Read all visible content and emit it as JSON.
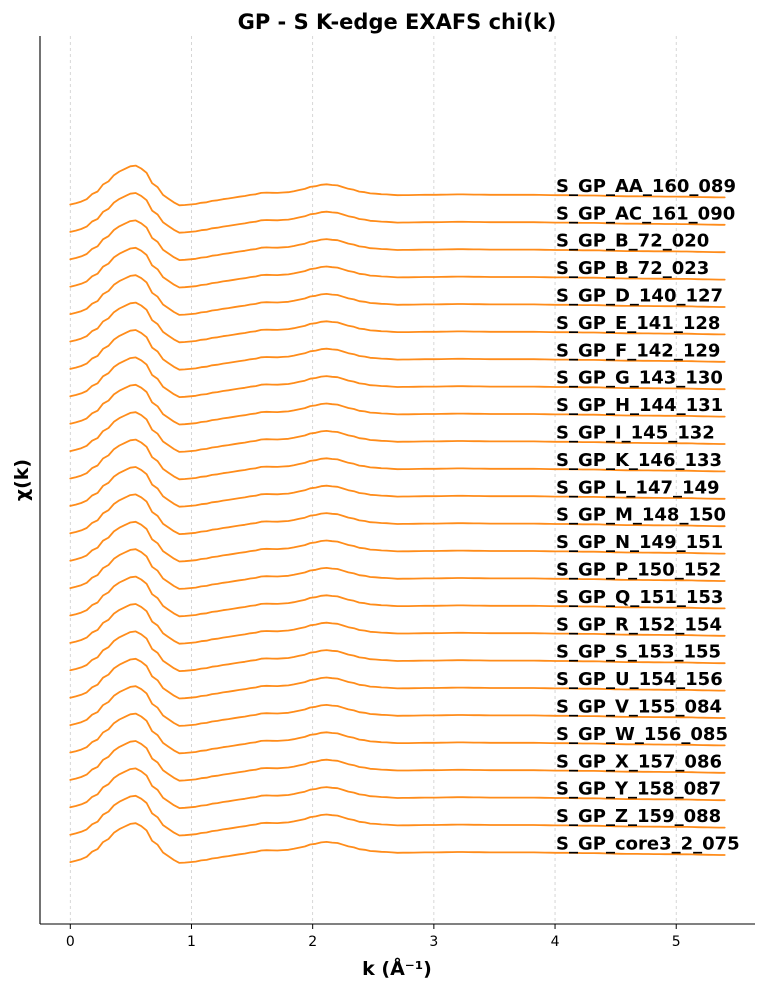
{
  "chart_data": {
    "type": "line",
    "title": "GP - S K-edge EXAFS chi(k)",
    "xlabel": "k (Å⁻¹)",
    "ylabel": "χ(k)",
    "xlim": [
      -0.25,
      5.65
    ],
    "x_ticks": [
      0,
      1,
      2,
      3,
      4,
      5
    ],
    "y_ticks_shown": false,
    "grid": "vertical dashed",
    "line_color": "#ff8c1a",
    "x_end": 5.4,
    "offset_step": 1,
    "profile": {
      "k": [
        0,
        0.1,
        0.2,
        0.3,
        0.4,
        0.5,
        0.55,
        0.6,
        0.7,
        0.8,
        0.9,
        1.0,
        1.1,
        1.2,
        1.3,
        1.4,
        1.5,
        1.6,
        1.7,
        1.8,
        1.9,
        2.0,
        2.1,
        2.2,
        2.3,
        2.4,
        2.5,
        2.6,
        2.7,
        3.0,
        3.2,
        3.5,
        3.8,
        4.0,
        4.3,
        4.6,
        5.0,
        5.4
      ],
      "chi": [
        -1.8,
        -1.4,
        -0.3,
        1.2,
        2.6,
        3.3,
        3.4,
        2.9,
        0.7,
        -1.0,
        -1.9,
        -1.8,
        -1.55,
        -1.25,
        -1.0,
        -0.75,
        -0.5,
        -0.2,
        -0.25,
        -0.15,
        0.15,
        0.6,
        0.9,
        0.75,
        0.3,
        -0.1,
        -0.35,
        -0.45,
        -0.55,
        -0.5,
        -0.45,
        -0.5,
        -0.5,
        -0.55,
        -0.6,
        -0.7,
        -0.75,
        -0.85
      ]
    },
    "series": [
      {
        "name": "S_GP_AA_160_089"
      },
      {
        "name": "S_GP_AC_161_090"
      },
      {
        "name": "S_GP_B_72_020"
      },
      {
        "name": "S_GP_B_72_023"
      },
      {
        "name": "S_GP_D_140_127"
      },
      {
        "name": "S_GP_E_141_128"
      },
      {
        "name": "S_GP_F_142_129"
      },
      {
        "name": "S_GP_G_143_130"
      },
      {
        "name": "S_GP_H_144_131"
      },
      {
        "name": "S_GP_I_145_132"
      },
      {
        "name": "S_GP_K_146_133"
      },
      {
        "name": "S_GP_L_147_149"
      },
      {
        "name": "S_GP_M_148_150"
      },
      {
        "name": "S_GP_N_149_151"
      },
      {
        "name": "S_GP_P_150_152"
      },
      {
        "name": "S_GP_Q_151_153"
      },
      {
        "name": "S_GP_R_152_154"
      },
      {
        "name": "S_GP_S_153_155"
      },
      {
        "name": "S_GP_U_154_156"
      },
      {
        "name": "S_GP_V_155_084"
      },
      {
        "name": "S_GP_W_156_085"
      },
      {
        "name": "S_GP_X_157_086"
      },
      {
        "name": "S_GP_Y_158_087"
      },
      {
        "name": "S_GP_Z_159_088"
      },
      {
        "name": "S_GP_core3_2_075"
      }
    ]
  }
}
